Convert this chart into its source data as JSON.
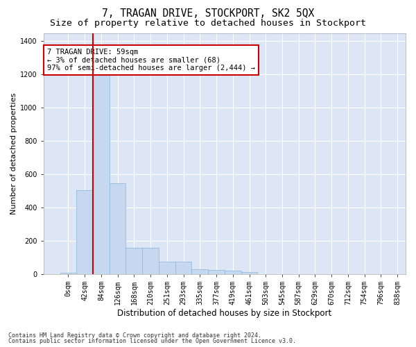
{
  "title": "7, TRAGAN DRIVE, STOCKPORT, SK2 5QX",
  "subtitle": "Size of property relative to detached houses in Stockport",
  "xlabel": "Distribution of detached houses by size in Stockport",
  "ylabel": "Number of detached properties",
  "footnote1": "Contains HM Land Registry data © Crown copyright and database right 2024.",
  "footnote2": "Contains public sector information licensed under the Open Government Licence v3.0.",
  "annotation_title": "7 TRAGAN DRIVE: 59sqm",
  "annotation_line1": "← 3% of detached houses are smaller (68)",
  "annotation_line2": "97% of semi-detached houses are larger (2,444) →",
  "bar_color": "#c5d8f0",
  "bar_edge_color": "#8ab4d8",
  "red_line_color": "#cc0000",
  "annotation_box_edge_color": "#cc0000",
  "fig_bg_color": "#ffffff",
  "plot_bg_color": "#dce6f5",
  "grid_color": "#ffffff",
  "bin_labels": [
    "0sqm",
    "42sqm",
    "84sqm",
    "126sqm",
    "168sqm",
    "210sqm",
    "251sqm",
    "293sqm",
    "335sqm",
    "377sqm",
    "419sqm",
    "461sqm",
    "503sqm",
    "545sqm",
    "587sqm",
    "629sqm",
    "670sqm",
    "712sqm",
    "754sqm",
    "796sqm",
    "838sqm"
  ],
  "bar_heights": [
    8,
    505,
    1215,
    545,
    158,
    158,
    75,
    75,
    27,
    23,
    18,
    12,
    0,
    0,
    0,
    0,
    0,
    0,
    0,
    0
  ],
  "red_line_x": 1.5,
  "ylim": [
    0,
    1450
  ],
  "yticks": [
    0,
    200,
    400,
    600,
    800,
    1000,
    1200,
    1400
  ],
  "title_fontsize": 10.5,
  "subtitle_fontsize": 9.5,
  "xlabel_fontsize": 8.5,
  "ylabel_fontsize": 8,
  "tick_fontsize": 7,
  "annotation_fontsize": 7.5
}
